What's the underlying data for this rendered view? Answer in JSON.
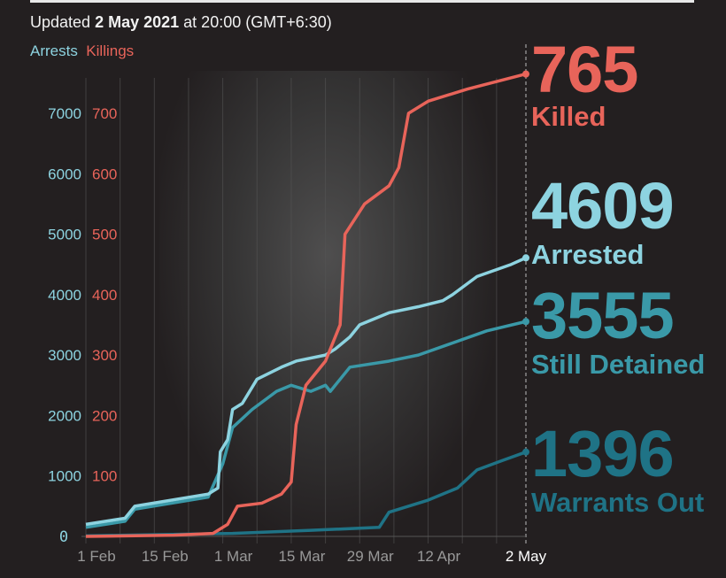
{
  "header": {
    "updated_prefix": "Updated",
    "updated_date": "2 May 2021",
    "updated_suffix": "at 20:00 (GMT+6:30)"
  },
  "legend": {
    "arrests": "Arrests",
    "killings": "Killings"
  },
  "stats": [
    {
      "value": "765",
      "label": "Killed",
      "color": "#e8645a"
    },
    {
      "value": "4609",
      "label": "Arrested",
      "color": "#8dd3e0"
    },
    {
      "value": "3555",
      "label": "Still Detained",
      "color": "#3a99a8"
    },
    {
      "value": "1396",
      "label": "Warrants Out",
      "color": "#1f7386"
    }
  ],
  "chart_data": {
    "type": "line",
    "x_unit": "days since 1 Feb 2021",
    "xlim": [
      0,
      90
    ],
    "x_ticks": [
      {
        "day": 0,
        "label": "1 Feb"
      },
      {
        "day": 14,
        "label": "15 Feb"
      },
      {
        "day": 28,
        "label": "1 Mar"
      },
      {
        "day": 42,
        "label": "15 Mar"
      },
      {
        "day": 56,
        "label": "29 Mar"
      },
      {
        "day": 70,
        "label": "12 Apr"
      },
      {
        "day": 90,
        "label": "2 May"
      }
    ],
    "y_left": {
      "label": "Arrests",
      "ticks": [
        0,
        1000,
        2000,
        3000,
        4000,
        5000,
        6000,
        7000
      ],
      "lim": [
        0,
        7000
      ],
      "color": "#8dd3e0"
    },
    "y_right": {
      "label": "Killings",
      "ticks": [
        100,
        200,
        300,
        400,
        500,
        600,
        700
      ],
      "lim": [
        0,
        700
      ],
      "color": "#e8645a"
    },
    "series": [
      {
        "name": "Warrants Out",
        "axis": "left",
        "color": "#1f7386",
        "points": [
          [
            0,
            10
          ],
          [
            30,
            50
          ],
          [
            46,
            100
          ],
          [
            60,
            150
          ],
          [
            62,
            400
          ],
          [
            70,
            600
          ],
          [
            76,
            800
          ],
          [
            80,
            1100
          ],
          [
            85,
            1250
          ],
          [
            90,
            1396
          ]
        ]
      },
      {
        "name": "Still Detained",
        "axis": "left",
        "color": "#3a99a8",
        "points": [
          [
            0,
            150
          ],
          [
            8,
            250
          ],
          [
            10,
            450
          ],
          [
            25,
            650
          ],
          [
            28,
            1200
          ],
          [
            30,
            1800
          ],
          [
            34,
            2100
          ],
          [
            39,
            2400
          ],
          [
            42,
            2500
          ],
          [
            46,
            2400
          ],
          [
            49,
            2500
          ],
          [
            50,
            2400
          ],
          [
            51,
            2500
          ],
          [
            54,
            2800
          ],
          [
            62,
            2900
          ],
          [
            68,
            3000
          ],
          [
            75,
            3200
          ],
          [
            82,
            3400
          ],
          [
            90,
            3555
          ]
        ]
      },
      {
        "name": "Arrested",
        "axis": "left",
        "color": "#8dd3e0",
        "points": [
          [
            0,
            200
          ],
          [
            8,
            300
          ],
          [
            10,
            500
          ],
          [
            25,
            700
          ],
          [
            27,
            800
          ],
          [
            27.5,
            1400
          ],
          [
            29,
            1600
          ],
          [
            30,
            2100
          ],
          [
            32,
            2200
          ],
          [
            35,
            2600
          ],
          [
            40,
            2800
          ],
          [
            43,
            2900
          ],
          [
            49,
            3000
          ],
          [
            51,
            3100
          ],
          [
            54,
            3300
          ],
          [
            56,
            3500
          ],
          [
            62,
            3700
          ],
          [
            68,
            3800
          ],
          [
            73,
            3900
          ],
          [
            75,
            4000
          ],
          [
            80,
            4300
          ],
          [
            87,
            4500
          ],
          [
            90,
            4609
          ]
        ]
      },
      {
        "name": "Killed",
        "axis": "right",
        "color": "#e8645a",
        "points": [
          [
            0,
            0
          ],
          [
            18,
            2
          ],
          [
            26,
            5
          ],
          [
            29,
            20
          ],
          [
            31,
            50
          ],
          [
            36,
            55
          ],
          [
            40,
            70
          ],
          [
            42,
            90
          ],
          [
            43,
            185
          ],
          [
            45,
            250
          ],
          [
            49,
            290
          ],
          [
            52,
            350
          ],
          [
            53,
            500
          ],
          [
            57,
            550
          ],
          [
            62,
            580
          ],
          [
            64,
            610
          ],
          [
            66,
            700
          ],
          [
            70,
            720
          ],
          [
            78,
            740
          ],
          [
            90,
            765
          ]
        ]
      }
    ]
  }
}
